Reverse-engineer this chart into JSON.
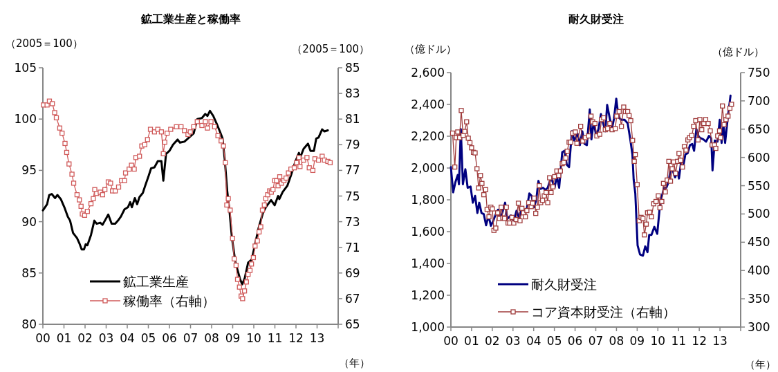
{
  "chart_data": [
    {
      "type": "line",
      "title": "鉱工業生産と稼働率",
      "ylabel": "（2005＝100）",
      "y2label": "（2005＝100）",
      "xlabel": "（年）",
      "legend": "bottom left",
      "line_style": "solid",
      "xlim": [
        2000,
        2014
      ],
      "xticks": [
        {
          "value": 2000,
          "label": "00"
        },
        {
          "value": 2001,
          "label": "01"
        },
        {
          "value": 2002,
          "label": "02"
        },
        {
          "value": 2003,
          "label": "03"
        },
        {
          "value": 2004,
          "label": "04"
        },
        {
          "value": 2005,
          "label": "05"
        },
        {
          "value": 2006,
          "label": "06"
        },
        {
          "value": 2007,
          "label": "07"
        },
        {
          "value": 2008,
          "label": "08"
        },
        {
          "value": 2009,
          "label": "09"
        },
        {
          "value": 2010,
          "label": "10"
        },
        {
          "value": 2011,
          "label": "11"
        },
        {
          "value": 2012,
          "label": "12"
        },
        {
          "value": 2013,
          "label": "13"
        },
        {
          "value": 2014,
          "label": null
        }
      ],
      "ylim": [
        80,
        105
      ],
      "yticks": [
        80,
        85,
        90,
        95,
        100,
        105
      ],
      "y2lim": [
        65,
        85
      ],
      "y2ticks": [
        65,
        67,
        69,
        71,
        73,
        75,
        77,
        79,
        81,
        83,
        85
      ],
      "series": [
        {
          "name": "鉱工業生産",
          "color": "#000000",
          "marker": "none",
          "x": [
            2000,
            2000.2,
            2000.3,
            2000.42,
            2000.58,
            2000.69,
            2000.85,
            2001.02,
            2001.18,
            2001.29,
            2001.43,
            2001.62,
            2001.73,
            2001.84,
            2001.95,
            2002.03,
            2002.11,
            2002.28,
            2002.44,
            2002.55,
            2002.72,
            2002.83,
            2002.94,
            2003.1,
            2003.26,
            2003.43,
            2003.56,
            2003.7,
            2003.87,
            2004.03,
            2004.14,
            2004.22,
            2004.36,
            2004.47,
            2004.58,
            2004.74,
            2004.85,
            2005.02,
            2005.13,
            2005.29,
            2005.45,
            2005.62,
            2005.71,
            2005.84,
            2006,
            2006.17,
            2006.39,
            2006.5,
            2006.71,
            2006.82,
            2007.15,
            2007.32,
            2007.54,
            2007.7,
            2007.8,
            2007.92,
            2008.08,
            2008.25,
            2008.41,
            2008.52,
            2008.63,
            2008.74,
            2008.85,
            2008.96,
            2009.13,
            2009.35,
            2009.45,
            2009.57,
            2009.73,
            2009.9,
            2010.06,
            2010.23,
            2010.44,
            2010.6,
            2010.82,
            2010.99,
            2011.15,
            2011.21,
            2011.37,
            2011.59,
            2011.76,
            2011.98,
            2012.14,
            2012.19,
            2012.36,
            2012.57,
            2012.69,
            2012.85,
            2012.96,
            2013.07,
            2013.24,
            2013.35,
            2013.51
          ],
          "values": [
            91.1,
            91.7,
            92.6,
            92.7,
            92.3,
            92.6,
            92.2,
            91.4,
            90.5,
            90.1,
            88.9,
            88.4,
            87.9,
            87.3,
            87.3,
            87.8,
            87.7,
            88.7,
            90.1,
            89.8,
            89.9,
            89.7,
            90.1,
            90.7,
            89.8,
            89.8,
            90.1,
            90.5,
            91.2,
            91.4,
            91.9,
            91.4,
            92.3,
            91.7,
            92.4,
            92.8,
            93.5,
            94.5,
            95.2,
            95.3,
            95.9,
            95.9,
            94.0,
            96.6,
            96.9,
            97.5,
            98.0,
            97.7,
            97.8,
            98.0,
            98.6,
            100.0,
            100.1,
            100.5,
            100.3,
            100.8,
            100.3,
            99.5,
            98.7,
            98.1,
            95.9,
            93.0,
            91.0,
            88.5,
            86.0,
            84.4,
            83.9,
            84.5,
            86.0,
            86.3,
            87.8,
            89.4,
            90.9,
            91.5,
            92.1,
            91.6,
            92.5,
            92.2,
            92.9,
            93.5,
            94.5,
            95.9,
            96.7,
            96.2,
            97.1,
            97.6,
            96.9,
            96.9,
            98.1,
            98.2,
            99.0,
            98.8,
            98.9
          ]
        },
        {
          "name": "稼働率（右軸）",
          "color": "#d05a5a",
          "marker": "square",
          "axis": "y2",
          "x": [
            2000.03,
            2000.2,
            2000.31,
            2000.45,
            2000.56,
            2000.64,
            2000.8,
            2000.91,
            2001.05,
            2001.13,
            2001.24,
            2001.38,
            2001.46,
            2001.62,
            2001.73,
            2001.81,
            2001.87,
            2001.98,
            2002.11,
            2002.28,
            2002.39,
            2002.46,
            2002.55,
            2002.72,
            2002.83,
            2002.94,
            2003.1,
            2003.21,
            2003.3,
            2003.43,
            2003.59,
            2003.73,
            2003.87,
            2003.92,
            2004.09,
            2004.2,
            2004.33,
            2004.41,
            2004.58,
            2004.69,
            2004.83,
            2004.96,
            2005.1,
            2005.29,
            2005.45,
            2005.62,
            2005.71,
            2005.78,
            2005.89,
            2006.06,
            2006.33,
            2006.55,
            2006.71,
            2006.88,
            2006.99,
            2007.15,
            2007.32,
            2007.54,
            2007.7,
            2007.8,
            2007.97,
            2008.14,
            2008.3,
            2008.45,
            2008.56,
            2008.65,
            2008.72,
            2008.79,
            2008.88,
            2008.99,
            2009.07,
            2009.16,
            2009.23,
            2009.32,
            2009.4,
            2009.47,
            2009.56,
            2009.65,
            2009.73,
            2009.82,
            2009.89,
            2009.98,
            2010.06,
            2010.17,
            2010.25,
            2010.33,
            2010.41,
            2010.5,
            2010.57,
            2010.66,
            2010.75,
            2010.83,
            2010.91,
            2010.99,
            2011.08,
            2011.15,
            2011.23,
            2011.31,
            2011.43,
            2011.53,
            2011.64,
            2011.76,
            2011.92,
            2012.03,
            2012.14,
            2012.19,
            2012.36,
            2012.52,
            2012.63,
            2012.8,
            2012.9,
            2013.07,
            2013.24,
            2013.35,
            2013.51,
            2013.62
          ],
          "values": [
            82.1,
            82.1,
            82.4,
            82.2,
            81.5,
            81.1,
            80.3,
            79.9,
            79.1,
            78.4,
            77.5,
            76.7,
            76.0,
            75.1,
            74.7,
            74.2,
            73.6,
            73.5,
            73.8,
            74.4,
            74.8,
            75.5,
            75.2,
            75.3,
            75.1,
            75.5,
            76.1,
            76.0,
            75.4,
            75.4,
            75.7,
            76.2,
            76.2,
            76.8,
            77.1,
            77.4,
            77.1,
            78.0,
            78.1,
            78.9,
            79.0,
            79.4,
            80.2,
            80.0,
            80.2,
            80.0,
            78.3,
            79.2,
            79.9,
            80.2,
            80.4,
            80.4,
            80.1,
            79.8,
            80.0,
            80.4,
            80.8,
            80.5,
            80.8,
            80.3,
            80.8,
            80.4,
            79.7,
            79.3,
            78.9,
            77.6,
            74.3,
            74.8,
            73.9,
            71.7,
            70.1,
            69.6,
            68.5,
            67.9,
            67.2,
            67.0,
            67.6,
            68.3,
            68.9,
            69.2,
            69.7,
            70.2,
            71.1,
            71.5,
            72.2,
            72.6,
            73.9,
            74.3,
            74.8,
            75.1,
            75.4,
            75.3,
            75.5,
            76.2,
            76.2,
            75.8,
            76.5,
            76.0,
            76.2,
            76.4,
            76.8,
            77.1,
            77.2,
            77.6,
            78.0,
            77.3,
            77.8,
            78.0,
            77.2,
            77.0,
            77.9,
            77.8,
            78.1,
            77.8,
            77.7,
            77.6
          ]
        }
      ]
    },
    {
      "type": "line",
      "title": "耐久財受注",
      "ylabel": "（億ドル）",
      "y2label": "（億ドル）",
      "xlabel": "（年）",
      "legend": "bottom left",
      "line_style": "solid",
      "xlim": [
        2000,
        2014
      ],
      "xticks": [
        {
          "value": 2000,
          "label": "00"
        },
        {
          "value": 2001,
          "label": "01"
        },
        {
          "value": 2002,
          "label": "02"
        },
        {
          "value": 2003,
          "label": "03"
        },
        {
          "value": 2004,
          "label": "04"
        },
        {
          "value": 2005,
          "label": "05"
        },
        {
          "value": 2006,
          "label": "06"
        },
        {
          "value": 2007,
          "label": "07"
        },
        {
          "value": 2008,
          "label": "08"
        },
        {
          "value": 2009,
          "label": "09"
        },
        {
          "value": 2010,
          "label": "10"
        },
        {
          "value": 2011,
          "label": "11"
        },
        {
          "value": 2012,
          "label": "12"
        },
        {
          "value": 2013,
          "label": "13"
        },
        {
          "value": 2014,
          "label": null
        }
      ],
      "ylim": [
        1000,
        2600
      ],
      "yticks": [
        {
          "value": 1000,
          "label": "1,000"
        },
        {
          "value": 1200,
          "label": "1,200"
        },
        {
          "value": 1400,
          "label": "1,400"
        },
        {
          "value": 1600,
          "label": "1,600"
        },
        {
          "value": 1800,
          "label": "1,800"
        },
        {
          "value": 2000,
          "label": "2,000"
        },
        {
          "value": 2200,
          "label": "2,200"
        },
        {
          "value": 2400,
          "label": "2,400"
        },
        {
          "value": 2600,
          "label": "2,600"
        }
      ],
      "y2lim": [
        300,
        750
      ],
      "y2ticks": [
        300,
        350,
        400,
        450,
        500,
        550,
        600,
        650,
        700,
        750
      ],
      "series": [
        {
          "name": "耐久財受注",
          "color": "#000080",
          "marker": "none",
          "x": [
            2000,
            2000.11,
            2000.22,
            2000.33,
            2000.39,
            2000.48,
            2000.58,
            2000.7,
            2000.81,
            2000.95,
            2001.06,
            2001.17,
            2001.28,
            2001.37,
            2001.48,
            2001.59,
            2001.7,
            2001.82,
            2001.93,
            2002.04,
            2002.17,
            2002.28,
            2002.39,
            2002.51,
            2002.62,
            2002.73,
            2002.9,
            2003.04,
            2003.17,
            2003.29,
            2003.42,
            2003.56,
            2003.67,
            2003.79,
            2003.9,
            2004.01,
            2004.12,
            2004.23,
            2004.34,
            2004.45,
            2004.57,
            2004.68,
            2004.84,
            2005.01,
            2005.12,
            2005.23,
            2005.38,
            2005.49,
            2005.6,
            2005.71,
            2005.85,
            2005.96,
            2006.12,
            2006.23,
            2006.35,
            2006.46,
            2006.57,
            2006.71,
            2006.79,
            2006.9,
            2007.02,
            2007.13,
            2007.25,
            2007.36,
            2007.46,
            2007.55,
            2007.69,
            2007.8,
            2007.88,
            2007.99,
            2008.1,
            2008.24,
            2008.39,
            2008.54,
            2008.66,
            2008.77,
            2008.83,
            2008.91,
            2009.02,
            2009.14,
            2009.28,
            2009.39,
            2009.5,
            2009.58,
            2009.69,
            2009.83,
            2009.97,
            2010.08,
            2010.17,
            2010.3,
            2010.41,
            2010.52,
            2010.61,
            2010.72,
            2010.83,
            2010.95,
            2011.02,
            2011.14,
            2011.25,
            2011.33,
            2011.44,
            2011.55,
            2011.66,
            2011.75,
            2011.86,
            2011.98,
            2012.09,
            2012.2,
            2012.33,
            2012.47,
            2012.58,
            2012.64,
            2012.75,
            2012.88,
            2012.99,
            2013.08,
            2013.17,
            2013.25,
            2013.36,
            2013.51
          ],
          "values": [
            2006,
            1847,
            1912,
            1956,
            1898,
            2245,
            1898,
            1992,
            1876,
            1883,
            1782,
            1825,
            1717,
            1782,
            1717,
            1710,
            1640,
            1702,
            1637,
            1666,
            1710,
            1738,
            1681,
            1731,
            1782,
            1681,
            1702,
            1666,
            1731,
            1688,
            1738,
            1731,
            1746,
            1840,
            1825,
            1753,
            1796,
            1919,
            1869,
            1876,
            1862,
            1876,
            1941,
            1876,
            1949,
            1876,
            2100,
            2108,
            2021,
            2006,
            2231,
            2173,
            2216,
            2144,
            2231,
            2151,
            2144,
            2368,
            2180,
            2289,
            2202,
            2245,
            2339,
            2281,
            2231,
            2397,
            2303,
            2260,
            2310,
            2436,
            2318,
            2303,
            2303,
            2281,
            2187,
            2086,
            1927,
            1840,
            1514,
            1456,
            1449,
            1507,
            1471,
            1579,
            1579,
            1630,
            1586,
            1738,
            1811,
            1876,
            1876,
            1912,
            1992,
            1985,
            1941,
            1977,
            1934,
            2057,
            2028,
            2086,
            2093,
            2144,
            2151,
            2108,
            2245,
            2195,
            2187,
            2180,
            2166,
            2202,
            2187,
            1985,
            2173,
            2166,
            2303,
            2158,
            2274,
            2158,
            2296,
            2455
          ]
        },
        {
          "name": "コア資本財受注（右軸）",
          "color": "#a03c3c",
          "marker": "square",
          "axis": "y2",
          "x": [
            2000.08,
            2000.19,
            2000.26,
            2000.33,
            2000.42,
            2000.5,
            2000.59,
            2000.67,
            2000.76,
            2000.84,
            2000.92,
            2001.0,
            2001.09,
            2001.17,
            2001.26,
            2001.34,
            2001.43,
            2001.5,
            2001.59,
            2001.68,
            2001.75,
            2001.84,
            2001.93,
            2002.0,
            2002.08,
            2002.17,
            2002.26,
            2002.34,
            2002.43,
            2002.51,
            2002.59,
            2002.68,
            2002.76,
            2002.84,
            2002.95,
            2003.04,
            2003.15,
            2003.26,
            2003.34,
            2003.43,
            2003.51,
            2003.6,
            2003.67,
            2003.76,
            2003.88,
            2003.95,
            2004.02,
            2004.1,
            2004.18,
            2004.27,
            2004.34,
            2004.43,
            2004.51,
            2004.6,
            2004.68,
            2004.77,
            2004.84,
            2004.93,
            2005.01,
            2005.12,
            2005.21,
            2005.29,
            2005.38,
            2005.46,
            2005.55,
            2005.62,
            2005.71,
            2005.79,
            2005.88,
            2006.01,
            2006.09,
            2006.27,
            2006.37,
            2006.5,
            2006.65,
            2006.77,
            2006.85,
            2006.96,
            2007.05,
            2007.19,
            2007.28,
            2007.38,
            2007.46,
            2007.57,
            2007.68,
            2007.79,
            2007.94,
            2008.01,
            2008.13,
            2008.24,
            2008.35,
            2008.43,
            2008.54,
            2008.61,
            2008.69,
            2008.78,
            2008.86,
            2008.91,
            2009.0,
            2009.1,
            2009.19,
            2009.28,
            2009.35,
            2009.44,
            2009.5,
            2009.6,
            2009.69,
            2009.8,
            2009.91,
            2010.02,
            2010.1,
            2010.19,
            2010.27,
            2010.36,
            2010.45,
            2010.53,
            2010.61,
            2010.69,
            2010.77,
            2010.86,
            2010.95,
            2011.02,
            2011.1,
            2011.19,
            2011.28,
            2011.36,
            2011.45,
            2011.53,
            2011.64,
            2011.73,
            2011.83,
            2011.94,
            2012.03,
            2012.12,
            2012.22,
            2012.31,
            2012.43,
            2012.53,
            2012.62,
            2012.73,
            2012.8,
            2012.89,
            2012.98,
            2013.03,
            2013.12,
            2013.2,
            2013.29,
            2013.39,
            2013.48,
            2013.56
          ],
          "values": [
            643,
            583,
            635,
            645,
            635,
            683,
            639,
            646,
            663,
            634,
            626,
            617,
            609,
            608,
            580,
            546,
            568,
            554,
            534,
            543,
            508,
            495,
            512,
            509,
            471,
            475,
            502,
            492,
            512,
            493,
            492,
            512,
            484,
            484,
            494,
            484,
            490,
            519,
            488,
            510,
            502,
            495,
            506,
            520,
            513,
            519,
            528,
            501,
            512,
            550,
            520,
            524,
            532,
            538,
            520,
            564,
            538,
            548,
            566,
            576,
            568,
            576,
            589,
            591,
            599,
            611,
            627,
            627,
            643,
            645,
            625,
            655,
            629,
            635,
            638,
            673,
            663,
            660,
            638,
            641,
            667,
            670,
            649,
            651,
            660,
            649,
            651,
            673,
            681,
            655,
            689,
            681,
            681,
            674,
            665,
            630,
            593,
            605,
            552,
            488,
            494,
            492,
            463,
            482,
            502,
            503,
            495,
            518,
            522,
            532,
            511,
            522,
            554,
            539,
            560,
            593,
            558,
            580,
            592,
            572,
            593,
            607,
            595,
            583,
            619,
            613,
            631,
            635,
            639,
            655,
            665,
            631,
            667,
            649,
            660,
            667,
            660,
            647,
            622,
            622,
            616,
            638,
            647,
            635,
            691,
            658,
            667,
            673,
            687,
            694
          ]
        }
      ]
    }
  ]
}
